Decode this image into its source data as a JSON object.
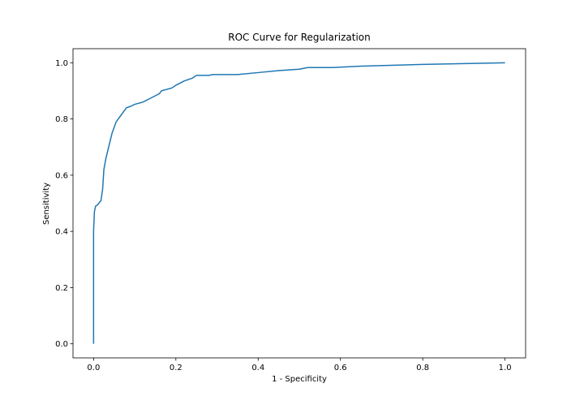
{
  "chart_data": {
    "type": "line",
    "title": "ROC Curve for Regularization",
    "x_label": "1 - Specificity",
    "y_label": "Sensitivity",
    "xlim": [
      -0.05,
      1.05
    ],
    "ylim": [
      -0.05,
      1.05
    ],
    "xticks": [
      {
        "value": 0,
        "label": "0.0"
      },
      {
        "value": 0.2,
        "label": "0.2"
      },
      {
        "value": 0.4,
        "label": "0.4"
      },
      {
        "value": 0.6,
        "label": "0.6"
      },
      {
        "value": 0.8,
        "label": "0.8"
      },
      {
        "value": 1,
        "label": "1.0"
      }
    ],
    "yticks": [
      {
        "value": 0,
        "label": "0.0"
      },
      {
        "value": 0.2,
        "label": "0.2"
      },
      {
        "value": 0.4,
        "label": "0.4"
      },
      {
        "value": 0.6,
        "label": "0.6"
      },
      {
        "value": 0.8,
        "label": "0.8"
      },
      {
        "value": 1,
        "label": "1.0"
      }
    ],
    "color": "#1f77b4",
    "x": [
      0,
      0,
      0.002,
      0.005,
      0.01,
      0.018,
      0.022,
      0.025,
      0.03,
      0.035,
      0.04,
      0.045,
      0.05,
      0.055,
      0.06,
      0.065,
      0.07,
      0.075,
      0.08,
      0.09,
      0.1,
      0.12,
      0.14,
      0.16,
      0.165,
      0.19,
      0.2,
      0.22,
      0.24,
      0.25,
      0.28,
      0.29,
      0.35,
      0.4,
      0.45,
      0.5,
      0.52,
      0.58,
      0.65,
      0.8,
      1
    ],
    "values": [
      0,
      0.4,
      0.47,
      0.49,
      0.495,
      0.51,
      0.55,
      0.62,
      0.66,
      0.69,
      0.72,
      0.75,
      0.77,
      0.79,
      0.8,
      0.81,
      0.82,
      0.83,
      0.84,
      0.845,
      0.852,
      0.86,
      0.875,
      0.89,
      0.9,
      0.91,
      0.92,
      0.935,
      0.945,
      0.955,
      0.955,
      0.958,
      0.958,
      0.965,
      0.972,
      0.977,
      0.983,
      0.983,
      0.988,
      0.994,
      1
    ]
  }
}
